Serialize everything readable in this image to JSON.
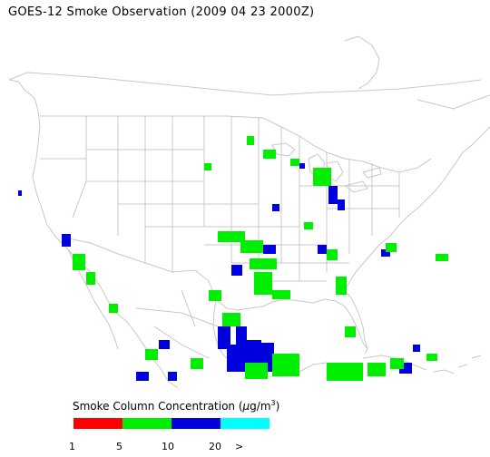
{
  "title": "GOES-12 Smoke Observation (2009 04 23  2000Z)",
  "legend": {
    "title_main": "Smoke Column Concentration (",
    "title_unit_mu": "μ",
    "title_unit_rest": "g/m",
    "title_unit_sup": "3",
    "title_close": ")",
    "bins": [
      {
        "color": "#ff0000",
        "range": "1-5"
      },
      {
        "color": "#00ee00",
        "range": "5-10"
      },
      {
        "color": "#0000dd",
        "range": "10-20"
      },
      {
        "color": "#00ffff",
        "range": ">20"
      }
    ],
    "tick_labels": [
      "1",
      "5",
      "10",
      "20",
      ">"
    ]
  },
  "colors": {
    "background": "#ffffff",
    "map_lines": "#c8c8c8",
    "low": "#00ee00",
    "mid": "#0000dd"
  }
}
